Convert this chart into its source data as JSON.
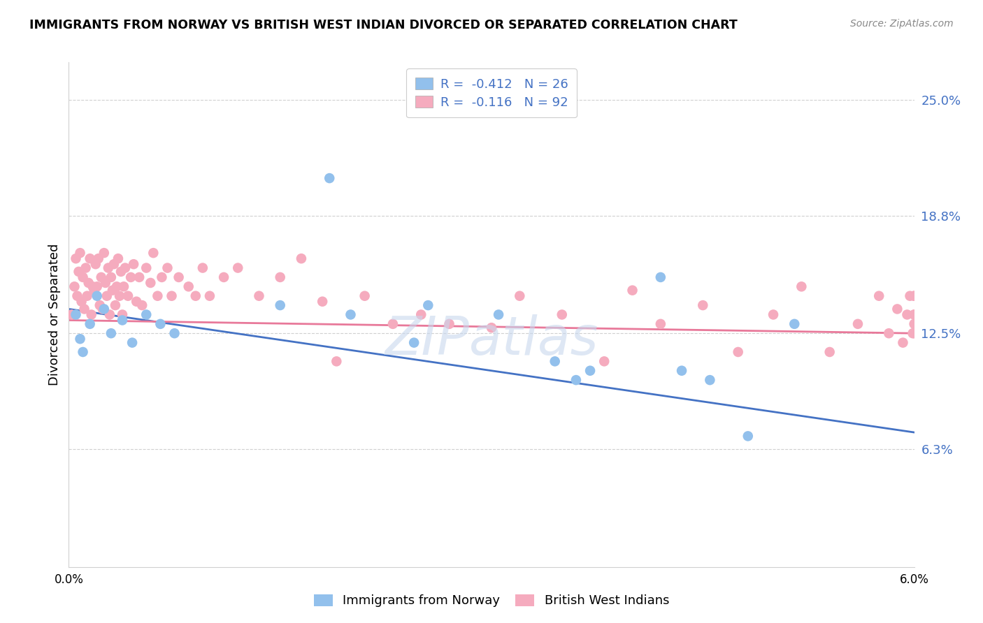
{
  "title": "IMMIGRANTS FROM NORWAY VS BRITISH WEST INDIAN DIVORCED OR SEPARATED CORRELATION CHART",
  "source": "Source: ZipAtlas.com",
  "ylabel": "Divorced or Separated",
  "ytick_values": [
    6.3,
    12.5,
    18.8,
    25.0
  ],
  "xmin": 0.0,
  "xmax": 6.0,
  "ymin": 0.0,
  "ymax": 27.0,
  "norway_color": "#92C0EC",
  "bwi_color": "#F5ABBE",
  "norway_R": -0.412,
  "norway_N": 26,
  "bwi_R": -0.116,
  "bwi_N": 92,
  "line_blue": "#4472C4",
  "line_pink": "#E8799A",
  "legend_text_color": "#4472C4",
  "norway_x": [
    0.05,
    0.08,
    0.1,
    0.15,
    0.2,
    0.25,
    0.3,
    0.38,
    0.45,
    0.55,
    0.65,
    0.75,
    1.5,
    1.85,
    2.0,
    2.45,
    2.55,
    3.05,
    3.45,
    3.6,
    3.7,
    4.2,
    4.35,
    4.55,
    4.82,
    5.15
  ],
  "norway_y": [
    13.5,
    12.2,
    11.5,
    13.0,
    14.5,
    13.8,
    12.5,
    13.2,
    12.0,
    13.5,
    13.0,
    12.5,
    14.0,
    20.8,
    13.5,
    12.0,
    14.0,
    13.5,
    11.0,
    10.0,
    10.5,
    15.5,
    10.5,
    10.0,
    7.0,
    13.0
  ],
  "bwi_x": [
    0.02,
    0.04,
    0.05,
    0.06,
    0.07,
    0.08,
    0.09,
    0.1,
    0.11,
    0.12,
    0.13,
    0.14,
    0.15,
    0.16,
    0.17,
    0.18,
    0.19,
    0.2,
    0.21,
    0.22,
    0.23,
    0.24,
    0.25,
    0.26,
    0.27,
    0.28,
    0.29,
    0.3,
    0.31,
    0.32,
    0.33,
    0.34,
    0.35,
    0.36,
    0.37,
    0.38,
    0.39,
    0.4,
    0.42,
    0.44,
    0.46,
    0.48,
    0.5,
    0.52,
    0.55,
    0.58,
    0.6,
    0.63,
    0.66,
    0.7,
    0.73,
    0.78,
    0.85,
    0.9,
    0.95,
    1.0,
    1.1,
    1.2,
    1.35,
    1.5,
    1.65,
    1.8,
    1.9,
    2.1,
    2.3,
    2.5,
    2.7,
    3.0,
    3.2,
    3.5,
    3.8,
    4.0,
    4.2,
    4.5,
    4.75,
    5.0,
    5.2,
    5.4,
    5.6,
    5.75,
    5.82,
    5.88,
    5.92,
    5.95,
    5.97,
    5.99,
    6.0,
    6.0,
    6.0,
    6.0,
    6.0,
    6.0
  ],
  "bwi_y": [
    13.5,
    15.0,
    16.5,
    14.5,
    15.8,
    16.8,
    14.2,
    15.5,
    13.8,
    16.0,
    14.5,
    15.2,
    16.5,
    13.5,
    15.0,
    14.8,
    16.2,
    15.0,
    16.5,
    14.0,
    15.5,
    13.8,
    16.8,
    15.2,
    14.5,
    16.0,
    13.5,
    15.5,
    14.8,
    16.2,
    14.0,
    15.0,
    16.5,
    14.5,
    15.8,
    13.5,
    15.0,
    16.0,
    14.5,
    15.5,
    16.2,
    14.2,
    15.5,
    14.0,
    16.0,
    15.2,
    16.8,
    14.5,
    15.5,
    16.0,
    14.5,
    15.5,
    15.0,
    14.5,
    16.0,
    14.5,
    15.5,
    16.0,
    14.5,
    15.5,
    16.5,
    14.2,
    11.0,
    14.5,
    13.0,
    13.5,
    13.0,
    12.8,
    14.5,
    13.5,
    11.0,
    14.8,
    13.0,
    14.0,
    11.5,
    13.5,
    15.0,
    11.5,
    13.0,
    14.5,
    12.5,
    13.8,
    12.0,
    13.5,
    14.5,
    12.5,
    13.5,
    14.5,
    13.0,
    14.5,
    12.5,
    13.5
  ]
}
